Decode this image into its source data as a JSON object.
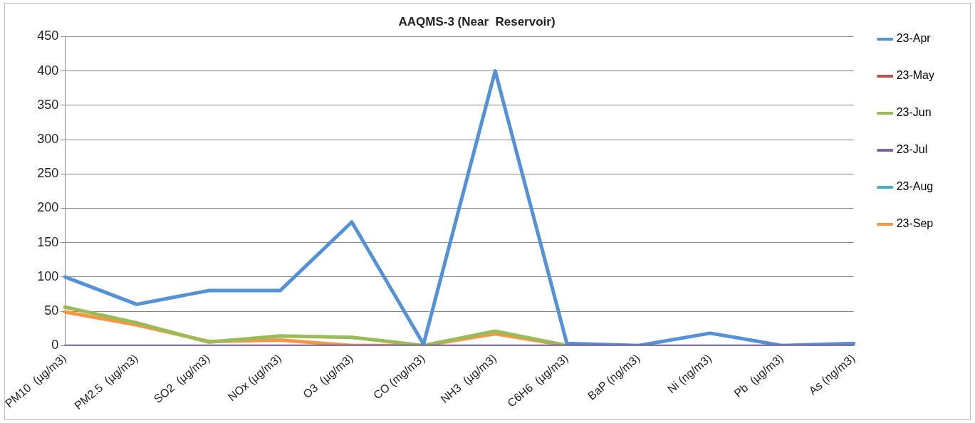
{
  "chart_data": {
    "type": "line",
    "title": "AAQMS-3 (Near  Reservoir)",
    "categories": [
      "PM10  (µg/m3)",
      "PM2.5  (µg/m3)",
      "SO2  (µg/m3)",
      "NOx (µg/m3)",
      "O3  (µg/m3)",
      "CO (mg/m3)",
      "NH3  (µg/m3)",
      "C6H6  (µg/m3)",
      "BaP (ng/m3)",
      "Ni (ng/m3)",
      "Pb  (µg/m3)",
      "As (ng/m3)"
    ],
    "series": [
      {
        "name": "23-Apr",
        "color": "#5591d6",
        "values": [
          100,
          60,
          80,
          80,
          180,
          2,
          400,
          3,
          0,
          18,
          0,
          3
        ]
      },
      {
        "name": "23-May",
        "color": "#c0504d",
        "values": [
          null,
          null,
          null,
          null,
          null,
          null,
          null,
          null,
          null,
          null,
          null,
          null
        ]
      },
      {
        "name": "23-Jun",
        "color": "#9bbb59",
        "values": [
          56,
          33,
          5,
          14,
          12,
          0,
          21,
          0,
          null,
          null,
          null,
          null
        ]
      },
      {
        "name": "23-Jul",
        "color": "#8064a2",
        "values": [
          0,
          0,
          0,
          0,
          0,
          0,
          0,
          0,
          0,
          0,
          0,
          0
        ]
      },
      {
        "name": "23-Aug",
        "color": "#4bacc6",
        "values": [
          null,
          null,
          null,
          null,
          null,
          null,
          null,
          null,
          null,
          null,
          null,
          null
        ]
      },
      {
        "name": "23-Sep",
        "color": "#f79646",
        "values": [
          49,
          30,
          6,
          8,
          0,
          0,
          17,
          0,
          null,
          null,
          null,
          null
        ]
      }
    ],
    "ylim": [
      0,
      450
    ],
    "yticks": [
      0,
      50,
      100,
      150,
      200,
      250,
      300,
      350,
      400,
      450
    ],
    "grid": "y",
    "legend": "right",
    "marker": "none",
    "line_style": "solid"
  }
}
